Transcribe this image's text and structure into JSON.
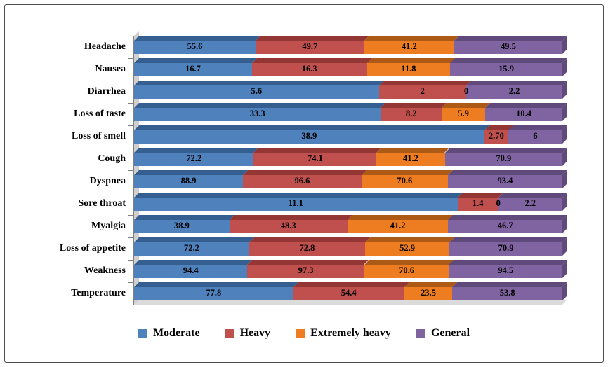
{
  "chart_data": {
    "type": "bar",
    "variant": "horizontal-stacked-100-3d",
    "title": "",
    "categories": [
      "Headache",
      "Nausea",
      "Diarrhea",
      "Loss of taste",
      "Loss of smell",
      "Cough",
      "Dyspnea",
      "Sore throat",
      "Myalgia",
      "Loss of appetite",
      "Weakness",
      "Temperature"
    ],
    "series": [
      {
        "name": "Moderate",
        "color": "#4F81BD",
        "color_dark": "#365F91",
        "values": [
          55.6,
          16.7,
          5.6,
          33.3,
          38.9,
          72.2,
          88.9,
          11.1,
          38.9,
          72.2,
          94.4,
          77.8
        ],
        "labels": [
          "55.6",
          "16.7",
          "5.6",
          "33.3",
          "38.9",
          "72.2",
          "88.9",
          "11.1",
          "38.9",
          "72.2",
          "94.4",
          "77.8"
        ]
      },
      {
        "name": "Heavy",
        "color": "#C0504D",
        "color_dark": "#943634",
        "values": [
          49.7,
          16.3,
          2,
          8.2,
          2.7,
          74.1,
          96.6,
          1.4,
          48.3,
          72.8,
          97.3,
          54.4
        ],
        "labels": [
          "49.7",
          "16.3",
          "2",
          "8.2",
          "2.70",
          "74.1",
          "96.6",
          "1.4",
          "48.3",
          "72.8",
          "97.3",
          "54.4"
        ]
      },
      {
        "name": "Extremely heavy",
        "color": "#EE7C20",
        "color_dark": "#AE5A17",
        "values": [
          41.2,
          11.8,
          0,
          5.9,
          0,
          41.2,
          70.6,
          0,
          41.2,
          52.9,
          70.6,
          23.5
        ],
        "labels": [
          "41.2",
          "11.8",
          "0",
          "5.9",
          "",
          "41.2",
          "70.6",
          "0",
          "41.2",
          "52.9",
          "70.6",
          "23.5"
        ]
      },
      {
        "name": "General",
        "color": "#8064A2",
        "color_dark": "#5F4A7B",
        "values": [
          49.5,
          15.9,
          2.2,
          10.4,
          6,
          70.9,
          93.4,
          2.2,
          46.7,
          70.9,
          94.5,
          53.8
        ],
        "labels": [
          "49.5",
          "15.9",
          "2.2",
          "10.4",
          "6",
          "70.9",
          "93.4",
          "2.2",
          "46.7",
          "70.9",
          "94.5",
          "53.8"
        ]
      }
    ],
    "legend": {
      "position": "bottom",
      "entries": [
        "Moderate",
        "Heavy",
        "Extremely heavy",
        "General"
      ]
    },
    "axes": {
      "x_axis_labels_visible": false,
      "gridlines": false
    }
  }
}
